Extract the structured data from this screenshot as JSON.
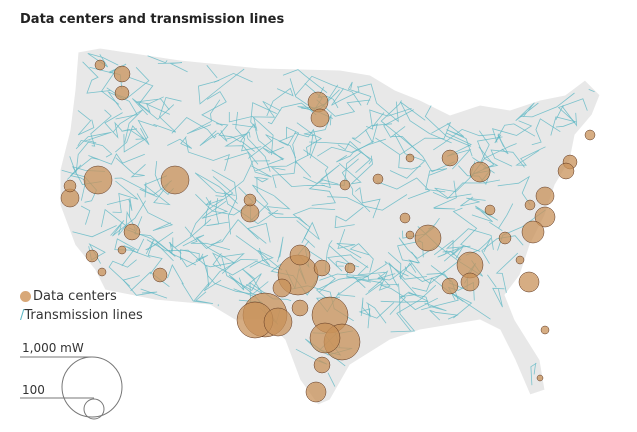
{
  "title": "Data centers and transmission lines",
  "legend": {
    "data_centers": "Data centers",
    "transmission_lines": "Transmission lines"
  },
  "size_legend": {
    "large": "1,000 mW",
    "small": "100"
  },
  "colors": {
    "land": "#e8e8e8",
    "lines": "#5fb8c4",
    "data_centers": "#c8925a",
    "data_center_edge": "#5a3420"
  }
}
